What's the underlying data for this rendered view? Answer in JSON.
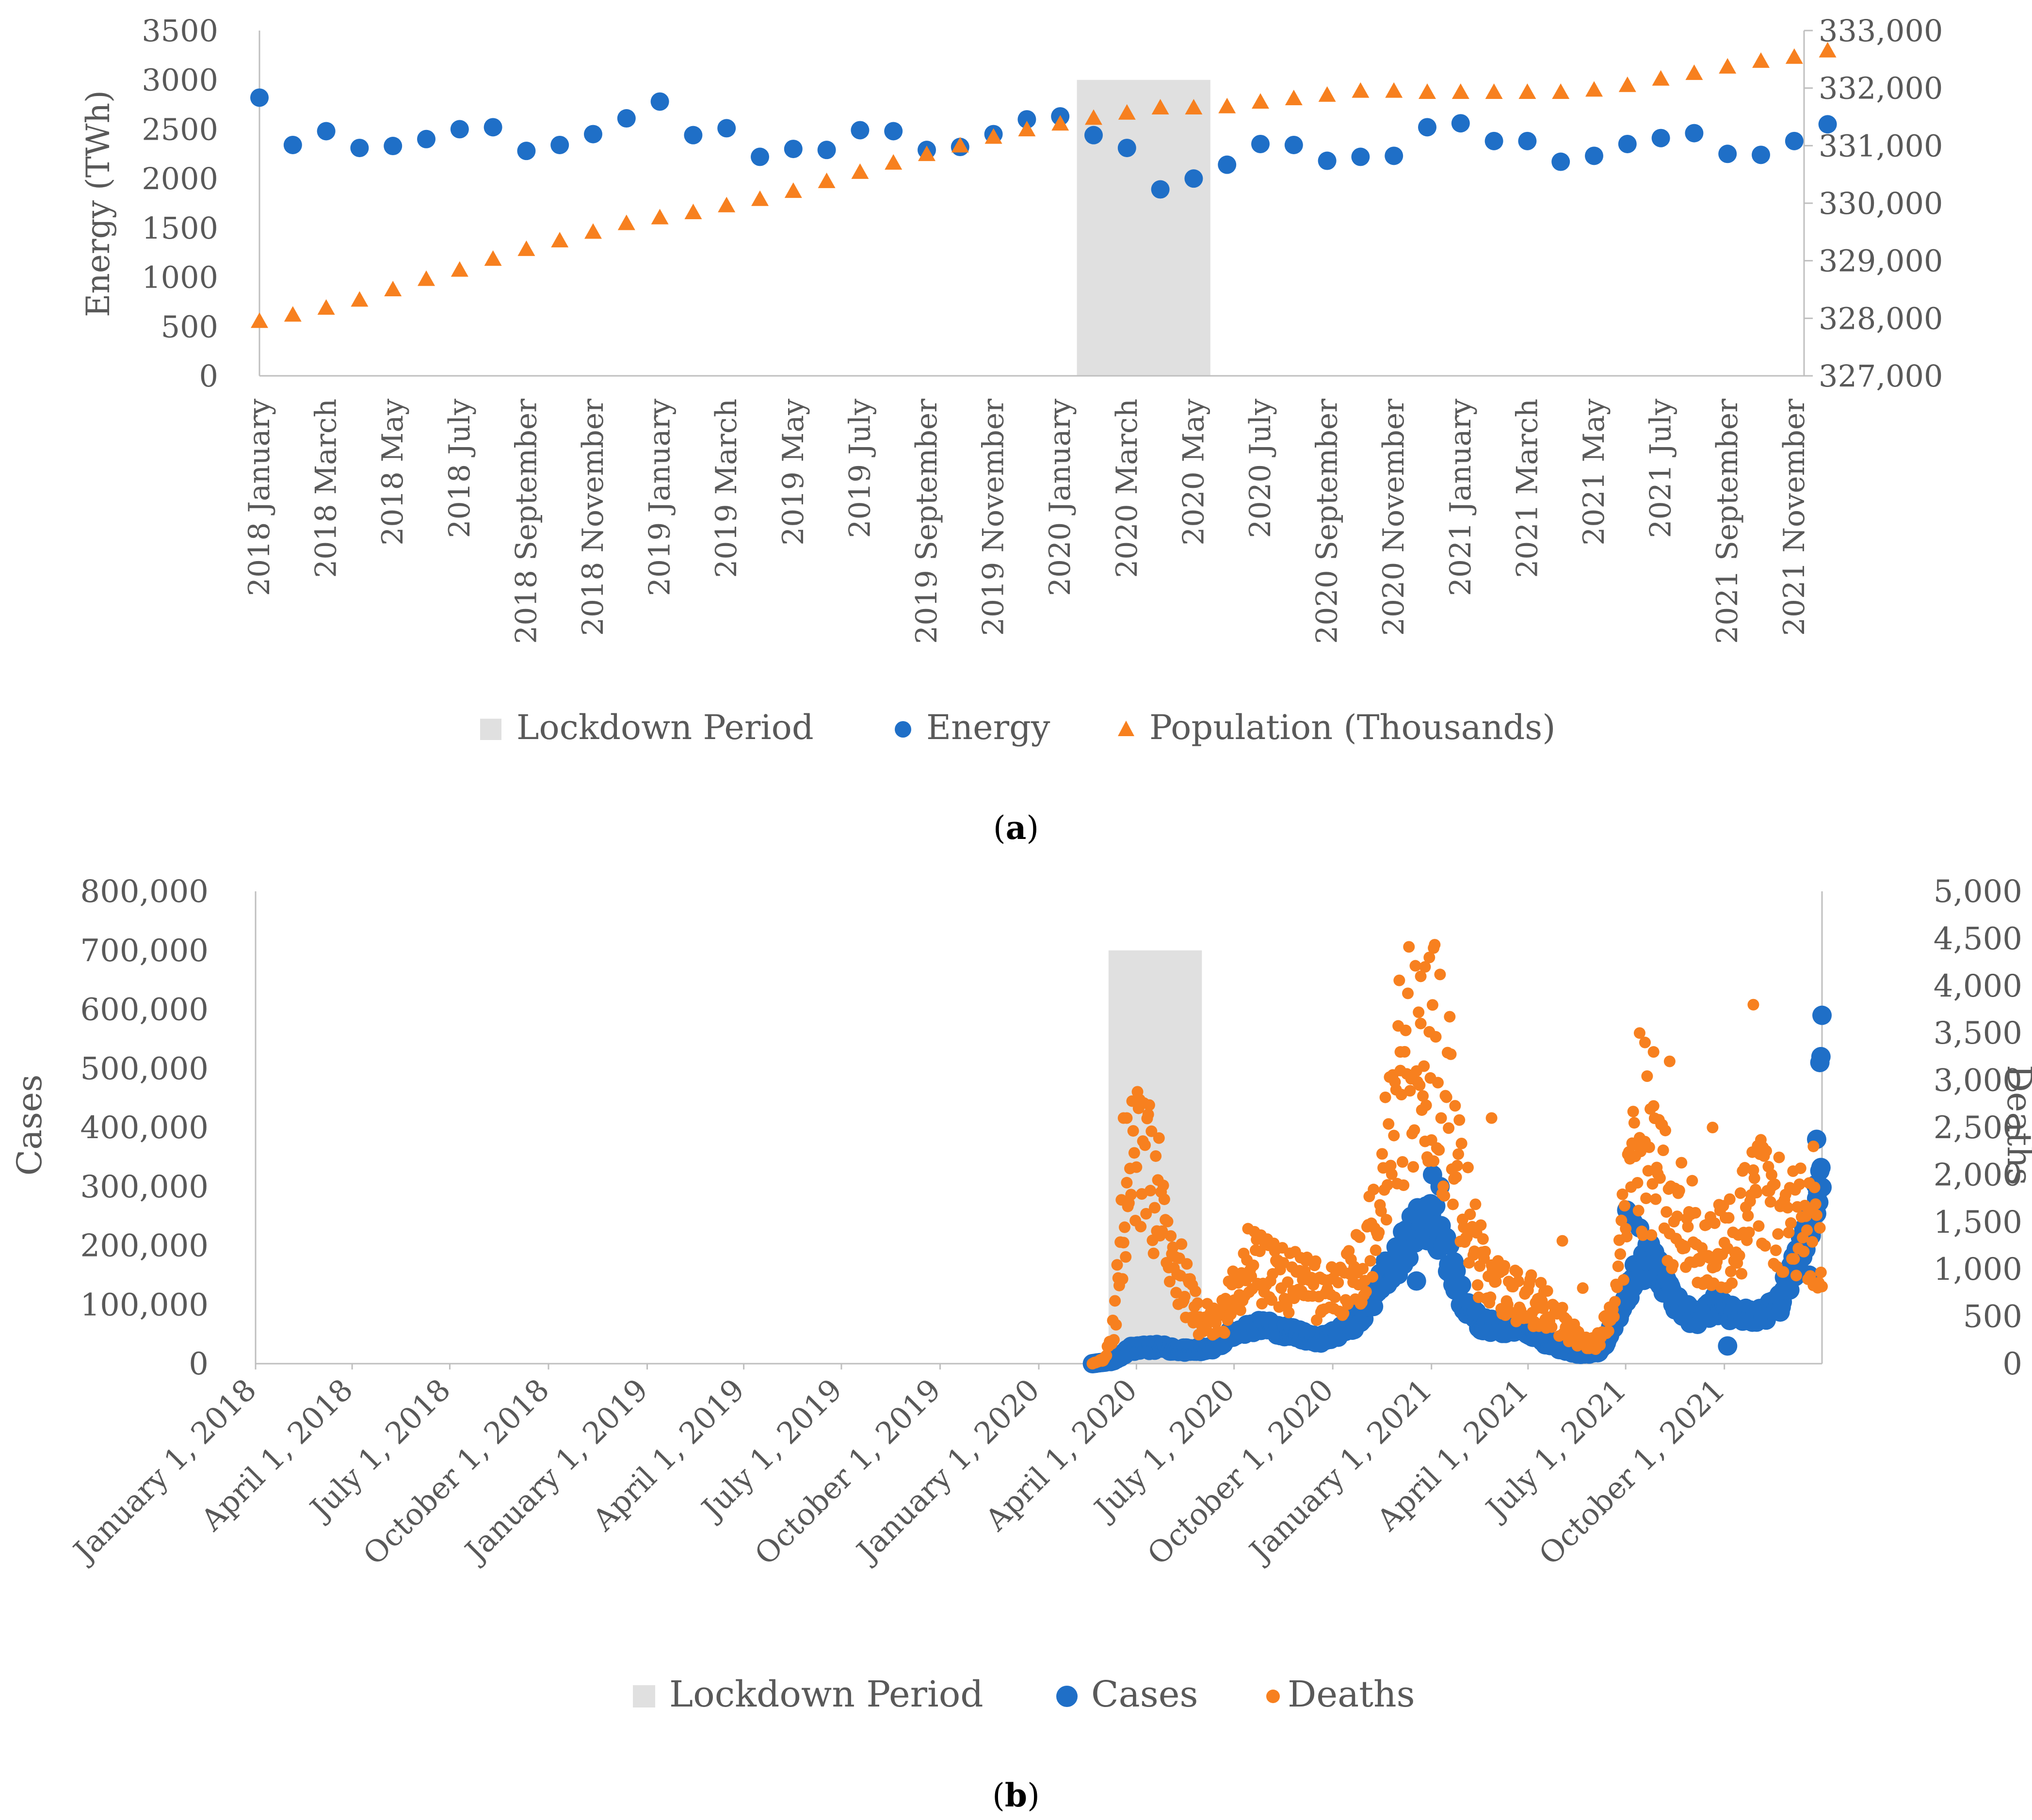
{
  "colors": {
    "lockdown": "#e0e0e0",
    "blue": "#1f6fc7",
    "orange": "#f7801f",
    "axis": "#bfbfbf",
    "text": "#595959"
  },
  "chart_data": [
    {
      "panel": "a",
      "type": "scatter",
      "ylabel": "Energy (TWh)",
      "ylim": [
        0,
        3500
      ],
      "y_ticks": [
        "3500",
        "3000",
        "2500",
        "2000",
        "1500",
        "1000",
        "500",
        "0"
      ],
      "y2lim": [
        327000,
        333000
      ],
      "y2_ticks": [
        "333,000",
        "332,000",
        "331,000",
        "330,000",
        "329,000",
        "328,000",
        "327,000"
      ],
      "x_ticks": [
        "2018 January",
        "2018 March",
        "2018 May",
        "2018 July",
        "2018 September",
        "2018 November",
        "2019 January",
        "2019 March",
        "2019 May",
        "2019 July",
        "2019 September",
        "2019 November",
        "2020 January",
        "2020 March",
        "2020 May",
        "2020 July",
        "2020 September",
        "2020 November",
        "2021 January",
        "2021 March",
        "2021 May",
        "2021 July",
        "2021 September",
        "2021 November"
      ],
      "lockdown": {
        "label": "Lockdown Period",
        "start_index": 25,
        "end_index": 28,
        "top": 3000
      },
      "series": [
        {
          "name": "Energy",
          "axis": "left",
          "marker": "circle",
          "values": [
            2820,
            2340,
            2480,
            2310,
            2330,
            2400,
            2500,
            2520,
            2280,
            2340,
            2450,
            2610,
            2780,
            2440,
            2510,
            2220,
            2300,
            2290,
            2490,
            2480,
            2290,
            2320,
            2450,
            2600,
            2630,
            2440,
            2310,
            1890,
            2000,
            2140,
            2350,
            2340,
            2180,
            2220,
            2230,
            2520,
            2560,
            2380,
            2380,
            2170,
            2230,
            2350,
            2410,
            2460,
            2250,
            2240,
            2380,
            2550
          ]
        },
        {
          "name": "Population (Thousands)",
          "axis": "right",
          "marker": "triangle",
          "values": [
            327950,
            328060,
            328180,
            328320,
            328500,
            328680,
            328840,
            329030,
            329200,
            329350,
            329500,
            329650,
            329750,
            329840,
            329960,
            330070,
            330210,
            330380,
            330540,
            330700,
            330850,
            331000,
            331150,
            331280,
            331380,
            331480,
            331570,
            331660,
            331660,
            331680,
            331760,
            331820,
            331880,
            331950,
            331950,
            331930,
            331930,
            331930,
            331930,
            331930,
            331970,
            332050,
            332160,
            332260,
            332370,
            332470,
            332540,
            332650
          ]
        }
      ],
      "legend": [
        "Lockdown Period",
        "Energy",
        "Population (Thousands)"
      ],
      "caption": {
        "open": "(",
        "letter": "a",
        "close": ")"
      }
    },
    {
      "panel": "b",
      "type": "scatter",
      "ylabel": "Cases",
      "ylim": [
        0,
        800000
      ],
      "y_ticks": [
        "800,000",
        "700,000",
        "600,000",
        "500,000",
        "400,000",
        "300,000",
        "200,000",
        "100,000",
        "0"
      ],
      "y2label": "Deaths",
      "y2lim": [
        0,
        5000
      ],
      "y2_ticks": [
        "5,000",
        "4,500",
        "4,000",
        "3,500",
        "3,000",
        "2,500",
        "2,000",
        "1,500",
        "1,000",
        "500",
        "0"
      ],
      "x_ticks": [
        "January 1, 2018",
        "April 1, 2018",
        "July 1, 2018",
        "October 1, 2018",
        "January 1, 2019",
        "April 1, 2019",
        "July 1, 2019",
        "October 1, 2019",
        "January 1, 2020",
        "April 1, 2020",
        "July 1, 2020",
        "October 1, 2020",
        "January 1, 2021",
        "April 1, 2021",
        "July 1, 2021",
        "October 1, 2021"
      ],
      "lockdown": {
        "label": "Lockdown Period",
        "start_day": 795,
        "end_day": 882,
        "top": 700000
      },
      "data_start_day": 780,
      "data_end_day": 1460,
      "series": [
        {
          "name": "Cases",
          "axis": "left",
          "marker": "circle",
          "anchors": [
            [
              780,
              0
            ],
            [
              800,
              5000
            ],
            [
              815,
              25000
            ],
            [
              840,
              28000
            ],
            [
              870,
              22000
            ],
            [
              890,
              25000
            ],
            [
              910,
              50000
            ],
            [
              925,
              60000
            ],
            [
              940,
              65000
            ],
            [
              960,
              55000
            ],
            [
              990,
              40000
            ],
            [
              1020,
              60000
            ],
            [
              1040,
              110000
            ],
            [
              1060,
              170000
            ],
            [
              1080,
              220000
            ],
            [
              1095,
              250000
            ],
            [
              1110,
              190000
            ],
            [
              1125,
              110000
            ],
            [
              1140,
              70000
            ],
            [
              1160,
              60000
            ],
            [
              1180,
              65000
            ],
            [
              1200,
              40000
            ],
            [
              1220,
              25000
            ],
            [
              1240,
              15000
            ],
            [
              1255,
              25000
            ],
            [
              1270,
              80000
            ],
            [
              1285,
              150000
            ],
            [
              1300,
              180000
            ],
            [
              1315,
              130000
            ],
            [
              1330,
              90000
            ],
            [
              1345,
              75000
            ],
            [
              1360,
              100000
            ],
            [
              1380,
              80000
            ],
            [
              1400,
              80000
            ],
            [
              1420,
              100000
            ],
            [
              1440,
              200000
            ],
            [
              1460,
              300000
            ]
          ],
          "extra": [
            [
              1097,
              320000
            ],
            [
              1104,
              300000
            ],
            [
              1082,
              140000
            ],
            [
              1278,
              260000
            ],
            [
              1284,
              240000
            ],
            [
              1290,
              230000
            ],
            [
              1372,
              30000
            ],
            [
              1455,
              280000
            ],
            [
              1458,
              510000
            ],
            [
              1459,
              520000
            ],
            [
              1460,
              590000
            ],
            [
              1455,
              380000
            ],
            [
              1448,
              150000
            ]
          ]
        },
        {
          "name": "Deaths",
          "axis": "right",
          "marker": "circle",
          "anchors": [
            [
              780,
              0
            ],
            [
              790,
              50
            ],
            [
              800,
              400
            ],
            [
              808,
              1500
            ],
            [
              815,
              2200
            ],
            [
              825,
              2300
            ],
            [
              835,
              2100
            ],
            [
              850,
              1600
            ],
            [
              865,
              900
            ],
            [
              880,
              500
            ],
            [
              900,
              500
            ],
            [
              915,
              900
            ],
            [
              925,
              1200
            ],
            [
              940,
              1100
            ],
            [
              955,
              1000
            ],
            [
              975,
              900
            ],
            [
              995,
              800
            ],
            [
              1015,
              900
            ],
            [
              1035,
              1200
            ],
            [
              1050,
              2200
            ],
            [
              1060,
              3000
            ],
            [
              1075,
              3500
            ],
            [
              1090,
              3700
            ],
            [
              1100,
              3500
            ],
            [
              1115,
              2800
            ],
            [
              1125,
              1800
            ],
            [
              1140,
              1200
            ],
            [
              1150,
              1000
            ],
            [
              1165,
              800
            ],
            [
              1185,
              750
            ],
            [
              1200,
              650
            ],
            [
              1215,
              500
            ],
            [
              1235,
              300
            ],
            [
              1250,
              250
            ],
            [
              1262,
              500
            ],
            [
              1275,
              1500
            ],
            [
              1285,
              2200
            ],
            [
              1295,
              2500
            ],
            [
              1310,
              2000
            ],
            [
              1325,
              1700
            ],
            [
              1340,
              1500
            ],
            [
              1355,
              1400
            ],
            [
              1370,
              1300
            ],
            [
              1390,
              1700
            ],
            [
              1410,
              1900
            ],
            [
              1430,
              1600
            ],
            [
              1445,
              1600
            ],
            [
              1460,
              1300
            ]
          ],
          "extra": [
            [
              1098,
              4400
            ],
            [
              1094,
              4300
            ],
            [
              1090,
              4200
            ],
            [
              1086,
              4100
            ],
            [
              1067,
              3300
            ],
            [
              1152,
              2600
            ],
            [
              1218,
              1300
            ],
            [
              1237,
              800
            ],
            [
              1290,
              3500
            ],
            [
              1295,
              3400
            ],
            [
              1303,
              3300
            ],
            [
              1318,
              3200
            ],
            [
              1396,
              3800
            ],
            [
              1358,
              2500
            ],
            [
              1452,
              2300
            ],
            [
              809,
              2600
            ],
            [
              812,
              2600
            ]
          ]
        }
      ],
      "legend": [
        "Lockdown Period",
        "Cases",
        "Deaths"
      ],
      "caption": {
        "open": "(",
        "letter": "b",
        "close": ")"
      }
    }
  ]
}
